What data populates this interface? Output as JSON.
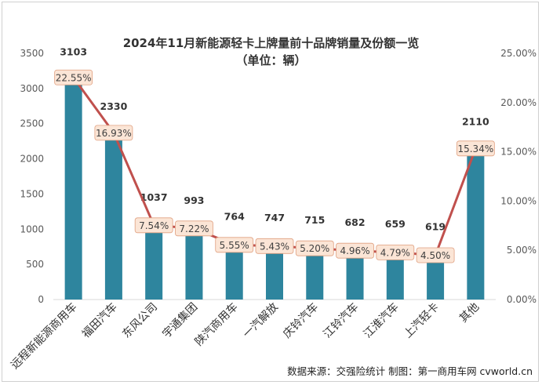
{
  "title": "2024年11月新能源轻卡上牌量前十品牌销量及份额一览",
  "subtitle": "（单位：辆）",
  "source": "数据来源：交强险统计  制图：第一商用车网 cvworld.cn",
  "colors": {
    "bar": "#2e859e",
    "line": "#c0504d",
    "label_bg": "#fbe5d6",
    "label_border": "#e0a080"
  },
  "chart_data": {
    "type": "bar",
    "categories": [
      "远程新能源商用车",
      "福田汽车",
      "东风公司",
      "宇通集团",
      "陕汽商用车",
      "一汽解放",
      "庆铃汽车",
      "江铃汽车",
      "江淮汽车",
      "上汽轻卡",
      "其他"
    ],
    "series": [
      {
        "name": "上牌量",
        "type": "bar",
        "values": [
          3103,
          2330,
          1037,
          993,
          764,
          747,
          715,
          682,
          659,
          619,
          2110
        ],
        "labels": [
          "3103",
          "2330",
          "1037",
          "993",
          "764",
          "747",
          "715",
          "682",
          "659",
          "619",
          "2110"
        ]
      },
      {
        "name": "份额",
        "type": "line",
        "axis": "right",
        "values": [
          22.55,
          16.93,
          7.54,
          7.22,
          5.55,
          5.43,
          5.2,
          4.96,
          4.79,
          4.5,
          15.34
        ],
        "labels": [
          "22.55%",
          "16.93%",
          "7.54%",
          "7.22%",
          "5.55%",
          "5.43%",
          "5.20%",
          "4.96%",
          "4.79%",
          "4.50%",
          "15.34%"
        ]
      }
    ],
    "ylim": [
      0,
      3500
    ],
    "yticks": [
      "0",
      "500",
      "1000",
      "1500",
      "2000",
      "2500",
      "3000",
      "3500"
    ],
    "y2lim": [
      0,
      25
    ],
    "y2ticks": [
      "0.00%",
      "5.00%",
      "10.00%",
      "15.00%",
      "20.00%",
      "25.00%"
    ]
  }
}
